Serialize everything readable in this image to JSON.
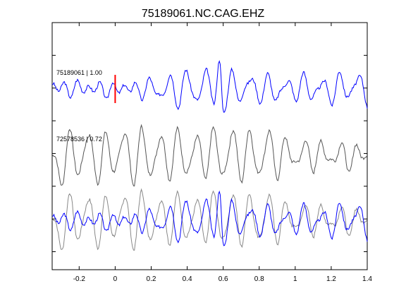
{
  "title": "75189061.NC.CAG.EHZ",
  "chart_data": {
    "type": "line",
    "title": "75189061.NC.CAG.EHZ",
    "xlabel": "",
    "ylabel": "",
    "xlim": [
      -0.35,
      1.4
    ],
    "x_ticks": [
      -0.2,
      0,
      0.2,
      0.4,
      0.6,
      0.8,
      1,
      1.2,
      1.4
    ],
    "x_tick_labels": [
      "-0.2",
      "0",
      "0.2",
      "0.4",
      "0.6",
      "0.8",
      "1",
      "1.2",
      "1.4"
    ],
    "grid": false,
    "pick_marker": {
      "x": 0,
      "color": "#ff0000"
    },
    "colors": {
      "primary": "#0000ff",
      "secondary": "#555555",
      "overlay_secondary": "#888888"
    },
    "traces": [
      {
        "label": "75189061 | 1.00",
        "color": "#0000ff",
        "x": [
          -0.35,
          -0.3,
          -0.25,
          -0.2,
          -0.15,
          -0.1,
          -0.05,
          0,
          0.05,
          0.1,
          0.15,
          0.2,
          0.25,
          0.3,
          0.35,
          0.4,
          0.45,
          0.5,
          0.55,
          0.58,
          0.6,
          0.65,
          0.7,
          0.75,
          0.8,
          0.85,
          0.9,
          0.95,
          1,
          1.05,
          1.1,
          1.15,
          1.2,
          1.25,
          1.3,
          1.35,
          1.4
        ],
        "y": [
          0,
          0.15,
          -0.15,
          0.2,
          -0.1,
          0.15,
          -0.2,
          0.1,
          -0.05,
          0.15,
          -0.25,
          0.35,
          -0.45,
          0.5,
          -0.6,
          0.75,
          -0.65,
          0.7,
          -0.4,
          1.0,
          -0.85,
          0.6,
          -0.5,
          0.55,
          -0.45,
          0.45,
          -0.5,
          0.4,
          -0.35,
          0.5,
          -0.45,
          0.4,
          -0.5,
          0.55,
          -0.4,
          0.6,
          -0.6
        ]
      },
      {
        "label": "72578536 | 0.72",
        "color": "#555555",
        "x": [
          -0.35,
          -0.3,
          -0.25,
          -0.2,
          -0.15,
          -0.1,
          -0.05,
          0,
          0.05,
          0.1,
          0.15,
          0.2,
          0.25,
          0.3,
          0.35,
          0.4,
          0.45,
          0.5,
          0.55,
          0.6,
          0.65,
          0.7,
          0.75,
          0.8,
          0.85,
          0.9,
          0.95,
          1,
          1.05,
          1.1,
          1.15,
          1.2,
          1.25,
          1.3,
          1.35,
          1.4
        ],
        "y": [
          0.2,
          -0.9,
          0.8,
          -0.7,
          0.9,
          -0.8,
          0.7,
          -0.6,
          0.95,
          -0.85,
          0.9,
          -0.75,
          0.8,
          -0.65,
          0.85,
          -0.7,
          0.75,
          -0.6,
          0.9,
          -0.8,
          0.95,
          -0.7,
          0.85,
          -0.75,
          0.9,
          -0.6,
          0.6,
          -0.4,
          0.5,
          -0.35,
          0.45,
          -0.3,
          0.4,
          -0.35,
          0.35,
          -0.2
        ]
      }
    ],
    "overlay": {
      "series": [
        "75189061 | 1.00",
        "72578536 | 0.72"
      ]
    }
  }
}
